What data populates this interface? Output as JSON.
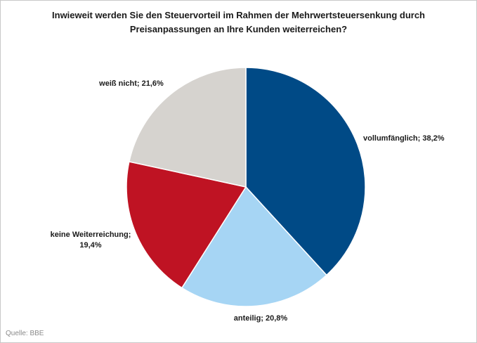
{
  "chart_data": {
    "type": "pie",
    "title_lines": [
      "Inwieweit werden Sie den Steuervorteil im Rahmen der Mehrwertsteuersenkung durch",
      "Preisanpassungen an Ihre Kunden weiterreichen?"
    ],
    "slices": [
      {
        "label_lines": [
          "vollumfänglich; 38,2%"
        ],
        "value": 38.2,
        "color": "#004a86"
      },
      {
        "label_lines": [
          "anteilig; 20,8%"
        ],
        "value": 20.8,
        "color": "#a6d5f4"
      },
      {
        "label_lines": [
          "keine Weiterreichung;",
          "19,4%"
        ],
        "value": 19.4,
        "color": "#bf1323"
      },
      {
        "label_lines": [
          "weiß nicht; 21,6%"
        ],
        "value": 21.6,
        "color": "#d6d3cf"
      }
    ],
    "start": "12 o'clock",
    "direction": "clockwise",
    "legend": "none"
  },
  "source": "Quelle: BBE"
}
